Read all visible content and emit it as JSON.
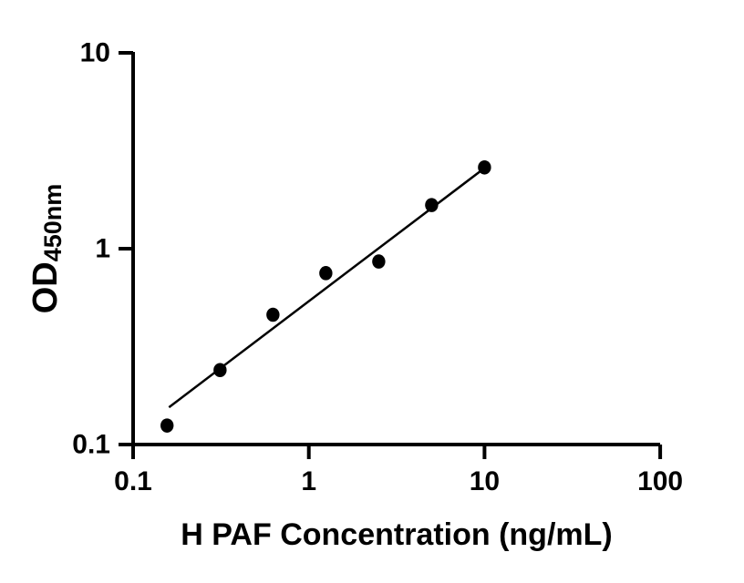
{
  "figure": {
    "background": "#ffffff",
    "ink": "#000000"
  },
  "chart_data": {
    "type": "scatter",
    "title": "",
    "xlabel": "H PAF Concentration (ng/mL)",
    "ylabel": {
      "main": "OD",
      "sub": "450nm"
    },
    "x_scale": "log",
    "y_scale": "log",
    "xlim": [
      0.1,
      100
    ],
    "ylim": [
      0.1,
      10
    ],
    "grid": false,
    "legend": false,
    "x_ticks": [
      {
        "value": 0.1,
        "label": "0.1"
      },
      {
        "value": 1,
        "label": "1"
      },
      {
        "value": 10,
        "label": "10"
      },
      {
        "value": 100,
        "label": "100"
      }
    ],
    "y_ticks": [
      {
        "value": 0.1,
        "label": "0.1"
      },
      {
        "value": 1,
        "label": "1"
      },
      {
        "value": 10,
        "label": "10"
      }
    ],
    "series": [
      {
        "name": "fit-line",
        "type": "line",
        "color": "#000000",
        "points": [
          {
            "x": 0.16,
            "y": 0.155
          },
          {
            "x": 10,
            "y": 2.58
          }
        ]
      },
      {
        "name": "standard-points",
        "type": "scatter",
        "marker": "filled-circle",
        "color": "#000000",
        "points": [
          {
            "x": 0.156,
            "y": 0.125
          },
          {
            "x": 0.3125,
            "y": 0.24
          },
          {
            "x": 0.625,
            "y": 0.46
          },
          {
            "x": 1.25,
            "y": 0.75
          },
          {
            "x": 2.5,
            "y": 0.86
          },
          {
            "x": 5,
            "y": 1.67
          },
          {
            "x": 10,
            "y": 2.6
          }
        ]
      }
    ]
  }
}
